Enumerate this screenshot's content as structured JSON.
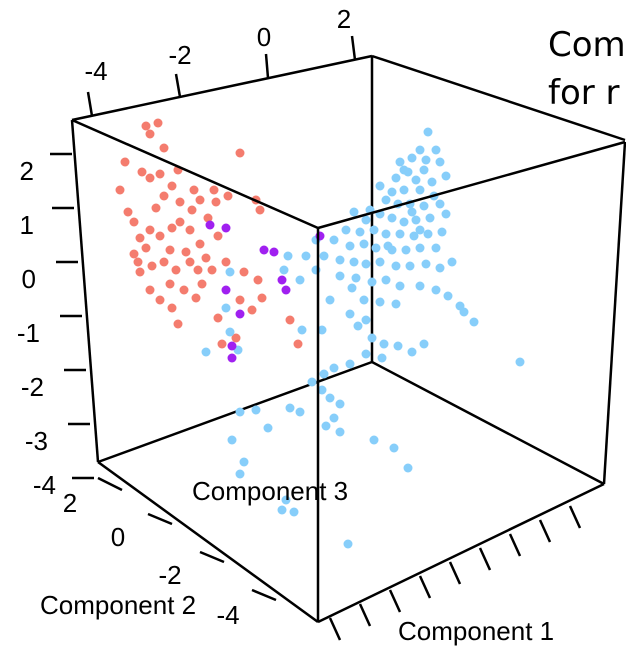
{
  "chart_data": {
    "type": "scatter",
    "title_lines": [
      "Com",
      "for r"
    ],
    "xlabel": "Component 1",
    "ylabel": "Component 2",
    "zlabel": "Component 3",
    "top_ticks": [
      "-4",
      "-2",
      "0",
      "2"
    ],
    "left_ticks": [
      "2",
      "1",
      "0",
      "-1",
      "-2",
      "-3",
      "-4"
    ],
    "bottom_ticks": [
      "2",
      "0",
      "-2",
      "-4"
    ],
    "grid": false,
    "colors": {
      "salmon": "#f47c6e",
      "lightblue": "#87cefa",
      "purple": "#a020f0"
    },
    "series": [
      {
        "color": "#f47c6e",
        "points": [
          [
            146,
            126
          ],
          [
            158,
            123
          ],
          [
            150,
            134
          ],
          [
            164,
            148
          ],
          [
            125,
            162
          ],
          [
            142,
            172
          ],
          [
            150,
            178
          ],
          [
            160,
            174
          ],
          [
            178,
            170
          ],
          [
            172,
            186
          ],
          [
            194,
            190
          ],
          [
            214,
            190
          ],
          [
            200,
            200
          ],
          [
            216,
            202
          ],
          [
            192,
            210
          ],
          [
            208,
            218
          ],
          [
            228,
            196
          ],
          [
            240,
            153
          ],
          [
            260,
            210
          ],
          [
            256,
            200
          ],
          [
            120,
            190
          ],
          [
            128,
            212
          ],
          [
            134,
            222
          ],
          [
            140,
            238
          ],
          [
            150,
            230
          ],
          [
            160,
            236
          ],
          [
            172,
            228
          ],
          [
            180,
            222
          ],
          [
            190,
            230
          ],
          [
            146,
            248
          ],
          [
            170,
            250
          ],
          [
            186,
            252
          ],
          [
            200,
            244
          ],
          [
            138,
            262
          ],
          [
            152,
            266
          ],
          [
            164,
            262
          ],
          [
            176,
            270
          ],
          [
            190,
            262
          ],
          [
            198,
            270
          ],
          [
            206,
            258
          ],
          [
            212,
            270
          ],
          [
            170,
            284
          ],
          [
            184,
            290
          ],
          [
            150,
            290
          ],
          [
            160,
            300
          ],
          [
            172,
            308
          ],
          [
            196,
            298
          ],
          [
            202,
            284
          ],
          [
            140,
            272
          ],
          [
            134,
            254
          ],
          [
            218,
            236
          ],
          [
            226,
            262
          ],
          [
            244,
            272
          ],
          [
            258,
            280
          ],
          [
            262,
            298
          ],
          [
            252,
            310
          ],
          [
            240,
            300
          ],
          [
            218,
            318
          ],
          [
            222,
            344
          ],
          [
            236,
            338
          ],
          [
            178,
            324
          ],
          [
            298,
            344
          ],
          [
            290,
            320
          ],
          [
            164,
            196
          ],
          [
            156,
            208
          ],
          [
            180,
            202
          ]
        ]
      },
      {
        "color": "#87cefa",
        "points": [
          [
            428,
            132
          ],
          [
            436,
            150
          ],
          [
            420,
            150
          ],
          [
            412,
            158
          ],
          [
            400,
            162
          ],
          [
            440,
            162
          ],
          [
            424,
            170
          ],
          [
            408,
            172
          ],
          [
            396,
            178
          ],
          [
            416,
            180
          ],
          [
            432,
            182
          ],
          [
            446,
            176
          ],
          [
            392,
            192
          ],
          [
            404,
            190
          ],
          [
            420,
            190
          ],
          [
            434,
            196
          ],
          [
            380,
            186
          ],
          [
            386,
            200
          ],
          [
            398,
            204
          ],
          [
            410,
            204
          ],
          [
            424,
            206
          ],
          [
            440,
            204
          ],
          [
            370,
            210
          ],
          [
            354,
            212
          ],
          [
            366,
            220
          ],
          [
            380,
            214
          ],
          [
            392,
            218
          ],
          [
            404,
            222
          ],
          [
            416,
            220
          ],
          [
            430,
            218
          ],
          [
            446,
            214
          ],
          [
            346,
            230
          ],
          [
            360,
            232
          ],
          [
            374,
            230
          ],
          [
            386,
            234
          ],
          [
            400,
            234
          ],
          [
            414,
            236
          ],
          [
            428,
            234
          ],
          [
            442,
            232
          ],
          [
            334,
            240
          ],
          [
            350,
            246
          ],
          [
            364,
            244
          ],
          [
            376,
            248
          ],
          [
            392,
            250
          ],
          [
            406,
            250
          ],
          [
            420,
            248
          ],
          [
            436,
            248
          ],
          [
            324,
            256
          ],
          [
            340,
            260
          ],
          [
            354,
            262
          ],
          [
            366,
            264
          ],
          [
            380,
            262
          ],
          [
            396,
            266
          ],
          [
            410,
            266
          ],
          [
            426,
            264
          ],
          [
            440,
            268
          ],
          [
            452,
            262
          ],
          [
            356,
            278
          ],
          [
            372,
            282
          ],
          [
            386,
            280
          ],
          [
            400,
            286
          ],
          [
            420,
            286
          ],
          [
            436,
            290
          ],
          [
            448,
            296
          ],
          [
            364,
            300
          ],
          [
            380,
            302
          ],
          [
            396,
            304
          ],
          [
            460,
            306
          ],
          [
            474,
            322
          ],
          [
            464,
            312
          ],
          [
            350,
            314
          ],
          [
            358,
            326
          ],
          [
            372,
            338
          ],
          [
            384,
            344
          ],
          [
            398,
            346
          ],
          [
            412,
            352
          ],
          [
            424,
            344
          ],
          [
            366,
            354
          ],
          [
            382,
            358
          ],
          [
            350,
            364
          ],
          [
            334,
            368
          ],
          [
            324,
            374
          ],
          [
            312,
            382
          ],
          [
            322,
            390
          ],
          [
            330,
            398
          ],
          [
            340,
            404
          ],
          [
            334,
            418
          ],
          [
            326,
            426
          ],
          [
            340,
            432
          ],
          [
            374,
            440
          ],
          [
            394,
            448
          ],
          [
            408,
            468
          ],
          [
            348,
            544
          ],
          [
            286,
            500
          ],
          [
            294,
            512
          ],
          [
            282,
            510
          ],
          [
            268,
            428
          ],
          [
            290,
            408
          ],
          [
            300,
            412
          ],
          [
            256,
            410
          ],
          [
            240,
            412
          ],
          [
            232,
            440
          ],
          [
            244,
            462
          ],
          [
            240,
            474
          ],
          [
            238,
            350
          ],
          [
            230,
            332
          ],
          [
            226,
            308
          ],
          [
            230,
            272
          ],
          [
            206,
            352
          ],
          [
            322,
            330
          ],
          [
            302,
            330
          ],
          [
            288,
            256
          ],
          [
            284,
            270
          ],
          [
            306,
            256
          ],
          [
            300,
            280
          ],
          [
            316,
            240
          ],
          [
            520,
            362
          ],
          [
            340,
            276
          ],
          [
            352,
            288
          ],
          [
            330,
            300
          ],
          [
            316,
            270
          ],
          [
            366,
            320
          ],
          [
            420,
            230
          ],
          [
            412,
            212
          ],
          [
            388,
            246
          ],
          [
            404,
            170
          ],
          [
            426,
            160
          ]
        ]
      },
      {
        "color": "#a020f0",
        "points": [
          [
            210,
            225
          ],
          [
            226,
            228
          ],
          [
            264,
            250
          ],
          [
            274,
            252
          ],
          [
            282,
            280
          ],
          [
            286,
            290
          ],
          [
            226,
            290
          ],
          [
            240,
            314
          ],
          [
            232,
            358
          ],
          [
            232,
            346
          ],
          [
            320,
            236
          ]
        ]
      }
    ]
  }
}
